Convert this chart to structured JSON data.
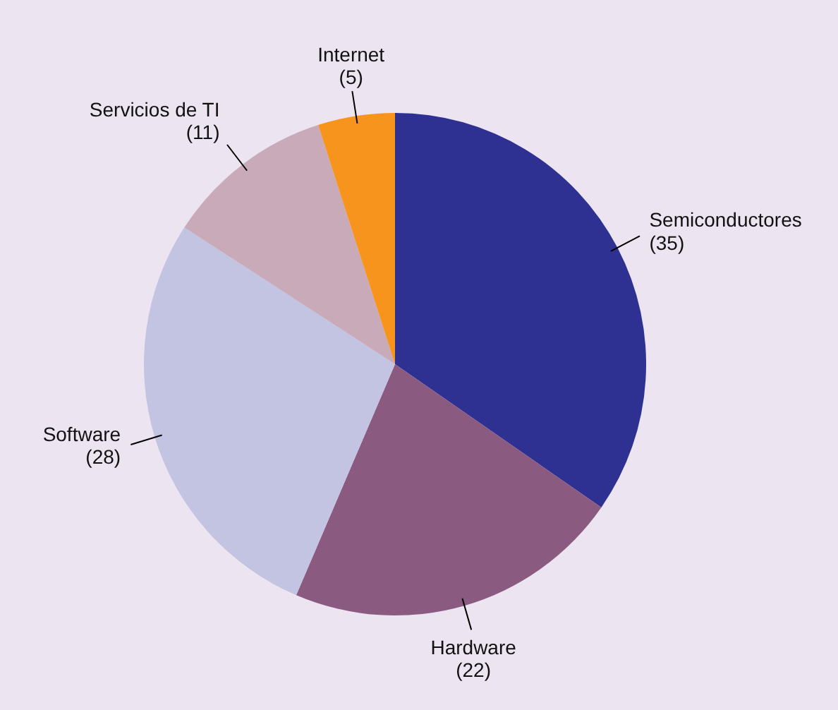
{
  "chart_data": {
    "type": "pie",
    "categories": [
      "Semiconductores",
      "Hardware",
      "Software",
      "Servicios de TI",
      "Internet"
    ],
    "values": [
      35,
      22,
      28,
      11,
      5
    ],
    "value_labels": [
      "(35)",
      "(22)",
      "(28)",
      "(11)",
      "(5)"
    ],
    "colors": [
      "#2e3192",
      "#8b5a80",
      "#c3c3e2",
      "#c9aab8",
      "#f7941d"
    ]
  }
}
